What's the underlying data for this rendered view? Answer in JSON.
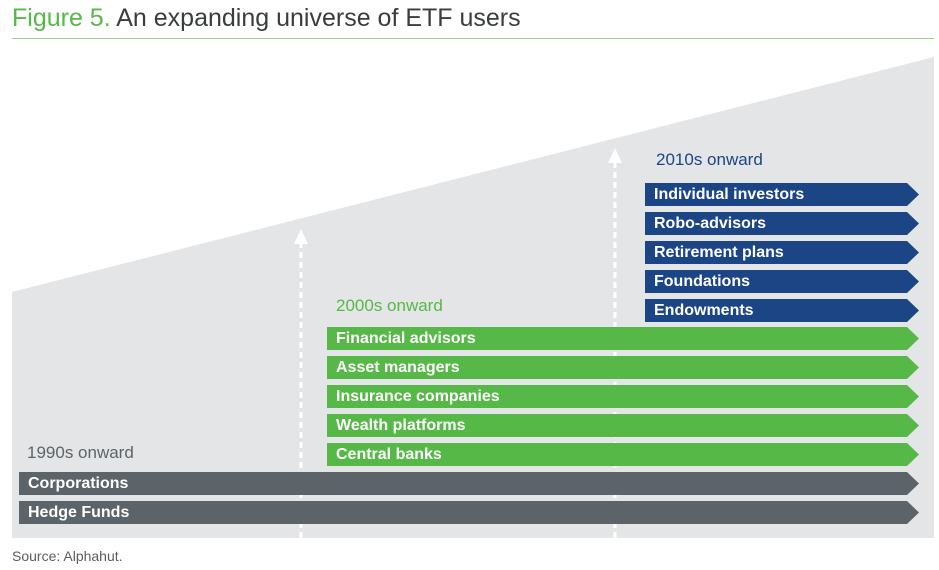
{
  "figure": {
    "number": "Figure 5.",
    "title": "An expanding universe of ETF users"
  },
  "colors": {
    "title_accent": "#56b947",
    "background_wedge": "#e4e5e6",
    "era_1990": "#5d6469",
    "era_2000": "#56b947",
    "era_2010": "#1c4585",
    "arrow": "#ffffff"
  },
  "eras": [
    {
      "label": "1990s onward",
      "users": [
        "Corporations",
        "Hedge Funds"
      ]
    },
    {
      "label": "2000s onward",
      "users": [
        "Financial advisors",
        "Asset managers",
        "Insurance companies",
        "Wealth platforms",
        "Central banks"
      ]
    },
    {
      "label": "2010s onward",
      "users": [
        "Individual investors",
        "Robo-advisors",
        "Retirement plans",
        "Foundations",
        "Endowments"
      ]
    }
  ],
  "source": "Source: Alphahut."
}
